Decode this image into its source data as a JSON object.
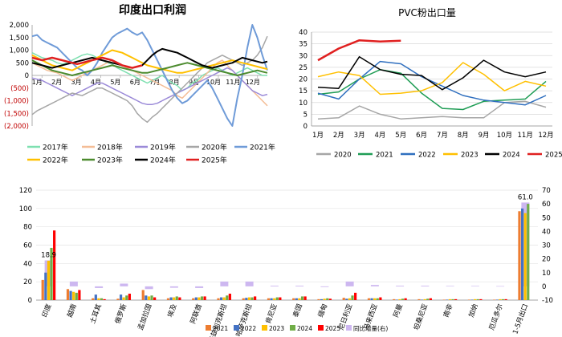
{
  "chart_data": [
    {
      "type": "line",
      "title": "印度出口利润",
      "ylim": [
        -2000,
        2000
      ],
      "y_ticks": [
        "2,000",
        "1,500",
        "1,000",
        "500",
        "0",
        "(500)",
        "(1,000)",
        "(1,500)",
        "(2,000)"
      ],
      "y_tick_values": [
        2000,
        1500,
        1000,
        500,
        0,
        -500,
        -1000,
        -1500,
        -2000
      ],
      "x_labels": [
        "1月",
        "2月",
        "3月",
        "4月",
        "5月",
        "6月",
        "7月",
        "8月",
        "9月",
        "10月",
        "11月",
        "12月"
      ],
      "x_points": 48,
      "series": [
        {
          "name": "2017年",
          "color": "#7ee0b0",
          "width": 1.5,
          "values": [
            900,
            800,
            700,
            650,
            600,
            500,
            450,
            500,
            600,
            700,
            800,
            850,
            800,
            700,
            600,
            500,
            450,
            300,
            200,
            100,
            0,
            -100,
            -200,
            -300,
            -200,
            -100,
            0,
            -150,
            -300,
            -400,
            -600,
            -500,
            -300,
            -200,
            0,
            100,
            200,
            300,
            200,
            100,
            0,
            100,
            200,
            300,
            200,
            100,
            0,
            0
          ]
        },
        {
          "name": "2018年",
          "color": "#f4bd96",
          "width": 1.5,
          "values": [
            500,
            400,
            300,
            200,
            150,
            100,
            0,
            -100,
            -200,
            -100,
            0,
            100,
            200,
            300,
            400,
            500,
            600,
            500,
            400,
            300,
            200,
            100,
            0,
            -100,
            -200,
            -300,
            -400,
            -500,
            -600,
            -800,
            -900,
            -700,
            -500,
            -300,
            -100,
            100,
            300,
            500,
            600,
            400,
            200,
            0,
            -200,
            -400,
            -600,
            -800,
            -1000,
            -1200
          ]
        },
        {
          "name": "2019年",
          "color": "#9b8ad8",
          "width": 1.5,
          "values": [
            -100,
            -150,
            -200,
            -300,
            -400,
            -500,
            -600,
            -700,
            -800,
            -700,
            -600,
            -500,
            -400,
            -300,
            -300,
            -400,
            -500,
            -600,
            -700,
            -800,
            -900,
            -1000,
            -1100,
            -1150,
            -1150,
            -1100,
            -1000,
            -900,
            -800,
            -700,
            -600,
            -500,
            -400,
            -300,
            -200,
            -100,
            0,
            100,
            200,
            300,
            200,
            0,
            -200,
            -400,
            -600,
            -700,
            -800,
            -750
          ]
        },
        {
          "name": "2020年",
          "color": "#a6a6a6",
          "width": 1.5,
          "values": [
            -1550,
            -1400,
            -1300,
            -1200,
            -1100,
            -1000,
            -900,
            -800,
            -700,
            -750,
            -800,
            -700,
            -600,
            -500,
            -500,
            -600,
            -700,
            -800,
            -900,
            -1000,
            -1200,
            -1500,
            -1700,
            -1850,
            -1650,
            -1500,
            -1300,
            -1100,
            -900,
            -700,
            -500,
            -300,
            -100,
            100,
            300,
            500,
            600,
            700,
            800,
            700,
            600,
            500,
            400,
            500,
            600,
            800,
            1100,
            1550
          ]
        },
        {
          "name": "2021年",
          "color": "#6f9bd8",
          "width": 2,
          "values": [
            1550,
            1600,
            1400,
            1300,
            1200,
            1100,
            900,
            700,
            500,
            300,
            200,
            0,
            200,
            500,
            900,
            1200,
            1500,
            1650,
            1750,
            1850,
            1700,
            1600,
            1700,
            1400,
            1000,
            600,
            200,
            -200,
            -600,
            -900,
            -1100,
            -1000,
            -800,
            -600,
            -400,
            -200,
            -500,
            -900,
            -1300,
            -1700,
            -2000,
            -900,
            0,
            1100,
            2000,
            1500,
            800,
            200
          ]
        },
        {
          "name": "2022年",
          "color": "#ffc000",
          "width": 2,
          "values": [
            800,
            700,
            600,
            500,
            400,
            350,
            300,
            250,
            200,
            300,
            400,
            500,
            600,
            700,
            800,
            900,
            1000,
            950,
            900,
            800,
            700,
            600,
            500,
            400,
            350,
            300,
            250,
            200,
            150,
            100,
            100,
            150,
            200,
            250,
            300,
            350,
            400,
            450,
            500,
            550,
            600,
            550,
            500,
            450,
            400,
            350,
            300,
            250
          ]
        },
        {
          "name": "2023年",
          "color": "#4c8b2e",
          "width": 2,
          "values": [
            600,
            500,
            400,
            300,
            200,
            150,
            100,
            50,
            0,
            50,
            100,
            150,
            200,
            250,
            300,
            350,
            400,
            350,
            300,
            250,
            200,
            150,
            100,
            100,
            150,
            200,
            250,
            300,
            350,
            400,
            450,
            500,
            450,
            400,
            350,
            300,
            250,
            200,
            150,
            100,
            50,
            0,
            50,
            100,
            150,
            200,
            150,
            100
          ]
        },
        {
          "name": "2024年",
          "color": "#000000",
          "width": 2,
          "values": [
            500,
            450,
            400,
            350,
            300,
            350,
            400,
            450,
            500,
            550,
            600,
            650,
            700,
            650,
            600,
            550,
            500,
            450,
            400,
            350,
            300,
            350,
            400,
            600,
            800,
            950,
            1050,
            1000,
            950,
            900,
            800,
            700,
            600,
            500,
            400,
            350,
            300,
            350,
            400,
            450,
            500,
            600,
            700,
            650,
            600,
            550,
            500,
            550
          ]
        },
        {
          "name": "2025年",
          "color": "#e02020",
          "width": 2.5,
          "values": [
            700,
            650,
            600,
            650,
            700,
            650,
            600,
            550,
            500,
            450,
            500,
            550,
            600,
            650,
            700,
            650,
            600,
            500,
            400,
            350,
            300,
            350,
            400,
            null,
            null,
            null,
            null,
            null,
            null,
            null,
            null,
            null,
            null,
            null,
            null,
            null,
            null,
            null,
            null,
            null,
            null,
            null,
            null,
            null,
            null,
            null,
            null,
            null
          ]
        }
      ]
    },
    {
      "type": "line",
      "title": "PVC粉出口量",
      "ylim": [
        0,
        40
      ],
      "y_ticks": [
        0,
        5,
        10,
        15,
        20,
        25,
        30,
        35,
        40
      ],
      "x_labels": [
        "1月",
        "2月",
        "3月",
        "4月",
        "5月",
        "6月",
        "7月",
        "8月",
        "9月",
        "10月",
        "11月",
        "12月"
      ],
      "series": [
        {
          "name": "2020",
          "color": "#a6a6a6",
          "width": 1.5,
          "values": [
            3,
            3.5,
            8.5,
            5,
            3,
            3.5,
            4,
            3.5,
            3.5,
            10,
            10.5,
            8
          ]
        },
        {
          "name": "2021",
          "color": "#1f9d55",
          "width": 1.5,
          "values": [
            13.5,
            14.5,
            20,
            24,
            22.5,
            14,
            7.5,
            7,
            10.5,
            11,
            11.5,
            19
          ]
        },
        {
          "name": "2022",
          "color": "#2f6fbf",
          "width": 1.5,
          "values": [
            14,
            11.5,
            20,
            27.5,
            26.5,
            21,
            17,
            13,
            11,
            10,
            9,
            13
          ]
        },
        {
          "name": "2023",
          "color": "#ffc000",
          "width": 1.5,
          "values": [
            21,
            23,
            21.5,
            13.5,
            14,
            15,
            18.5,
            27,
            22,
            15,
            19,
            17
          ]
        },
        {
          "name": "2024",
          "color": "#000000",
          "width": 1.5,
          "values": [
            16.5,
            16,
            29.5,
            24,
            22,
            21.5,
            15.5,
            20.5,
            28,
            23,
            21,
            23
          ]
        },
        {
          "name": "2025",
          "color": "#e02020",
          "width": 2.5,
          "values": [
            28,
            33,
            36.5,
            36,
            36.3,
            null,
            null,
            null,
            null,
            null,
            null,
            null
          ]
        }
      ]
    },
    {
      "type": "bar",
      "categories": [
        "印度",
        "越南",
        "土耳其",
        "俄罗斯",
        "孟加拉国",
        "埃及",
        "阿联酋",
        "乌兹别克斯坦",
        "哈萨克斯坦",
        "肯尼亚",
        "泰国",
        "缅甸",
        "尼日利亚",
        "马来西亚",
        "阿曼",
        "坦桑尼亚",
        "南非",
        "加纳",
        "厄瓜多尔",
        "1-5月出口"
      ],
      "ylim_left": [
        0,
        120
      ],
      "y_ticks_left": [
        0,
        20,
        40,
        60,
        80,
        100,
        120
      ],
      "ylim_right": [
        -10,
        70
      ],
      "y_ticks_right": [
        -10,
        0,
        10,
        20,
        30,
        40,
        50,
        60,
        70
      ],
      "series": [
        {
          "name": "2021",
          "color": "#ed7d31",
          "values": [
            22,
            12,
            2,
            1.5,
            11,
            2,
            2,
            2,
            2,
            2,
            2,
            1,
            2.5,
            2,
            1,
            1,
            0.5,
            0.5,
            0.5,
            97
          ]
        },
        {
          "name": "2022",
          "color": "#4472c4",
          "values": [
            30,
            10,
            6,
            6,
            5,
            3,
            3,
            3,
            2.5,
            2,
            2,
            1,
            1.5,
            2,
            0.5,
            0.5,
            0.5,
            0.5,
            0.5,
            100
          ]
        },
        {
          "name": "2023",
          "color": "#ffc000",
          "values": [
            43,
            9,
            2,
            3,
            4,
            3,
            3,
            3,
            3,
            2,
            2,
            1.5,
            2,
            2,
            1,
            1,
            1,
            1,
            1,
            95
          ]
        },
        {
          "name": "2024",
          "color": "#70ad47",
          "values": [
            57,
            8,
            2,
            5,
            5,
            4,
            4,
            5,
            3,
            3,
            4,
            2,
            5,
            2,
            1.5,
            1.5,
            1,
            1,
            1,
            105
          ]
        },
        {
          "name": "2025",
          "color": "#ff0000",
          "values": [
            76,
            11,
            1,
            7,
            3,
            3,
            4,
            7,
            4,
            3,
            4,
            1.5,
            8,
            3,
            2,
            2,
            1,
            1,
            1,
            0
          ]
        },
        {
          "name": "同比增量(右)",
          "color": "#cdb7f0",
          "axis": "right",
          "values": [
            18.9,
            3.5,
            -1.2,
            2,
            -2,
            -1,
            -1.2,
            3.5,
            3.5,
            0.5,
            0.5,
            -0.5,
            3.5,
            1,
            0.5,
            0.5,
            0.3,
            0.3,
            0.2,
            61.0
          ]
        }
      ],
      "data_labels": [
        {
          "category": "印度",
          "series": "同比增量(右)",
          "text": "18.9"
        },
        {
          "category": "1-5月出口",
          "series": "同比增量(右)",
          "text": "61.0"
        }
      ]
    }
  ]
}
